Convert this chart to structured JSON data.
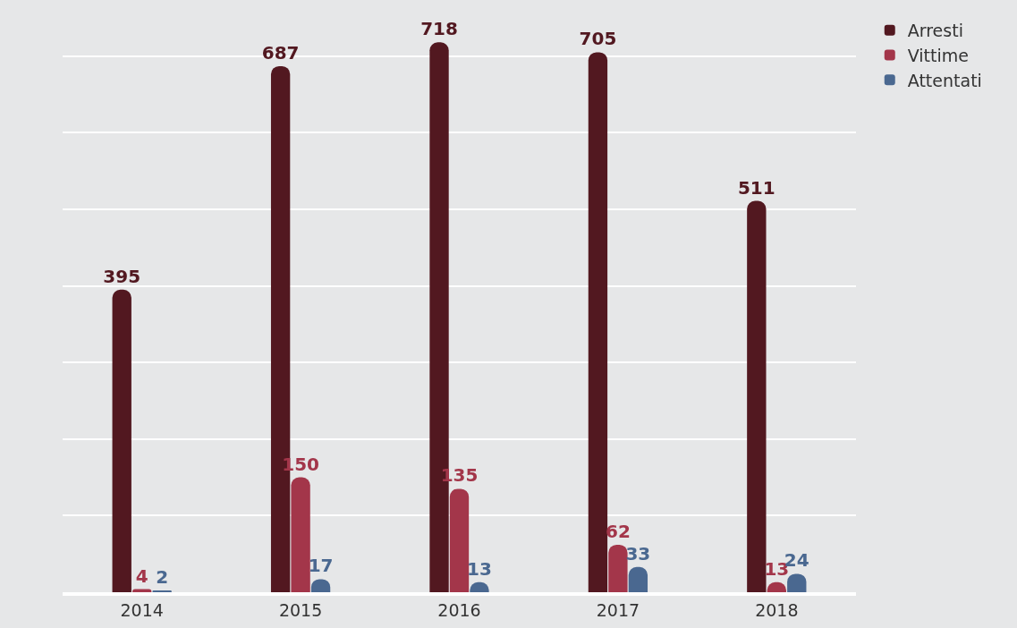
{
  "chart_data": {
    "type": "bar",
    "categories": [
      "2014",
      "2015",
      "2016",
      "2017",
      "2018"
    ],
    "series": [
      {
        "name": "Arresti",
        "color": "#521820",
        "values": [
          395,
          687,
          718,
          705,
          511
        ]
      },
      {
        "name": "Vittime",
        "color": "#a3364a",
        "values": [
          4,
          150,
          135,
          62,
          13
        ]
      },
      {
        "name": "Attentati",
        "color": "#4a6890",
        "values": [
          2,
          17,
          13,
          33,
          24
        ]
      }
    ],
    "data_labels": true,
    "yticks": [
      {
        "value": 0,
        "label": null
      },
      {
        "value": 100,
        "label": null
      },
      {
        "value": 200,
        "label": null
      },
      {
        "value": 300,
        "label": null
      },
      {
        "value": 400,
        "label": null
      },
      {
        "value": 500,
        "label": null
      },
      {
        "value": 600,
        "label": null
      },
      {
        "value": 700,
        "label": null
      }
    ],
    "grid": "y",
    "legend": "top right",
    "tick_labels": "x"
  }
}
